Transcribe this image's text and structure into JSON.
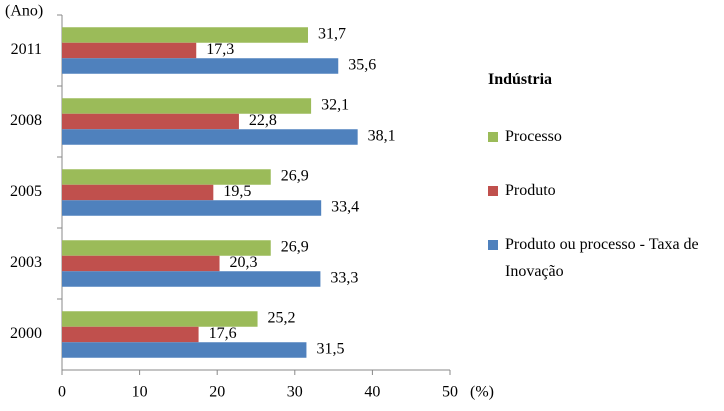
{
  "chart_data": {
    "type": "bar",
    "orientation": "horizontal",
    "x_label": "(%)",
    "y_label": "(Ano)",
    "legend_title": "Indústria",
    "categories": [
      "2011",
      "2008",
      "2005",
      "2003",
      "2000"
    ],
    "series": [
      {
        "name": "Processo",
        "color": "#9bbb59",
        "values": [
          31.7,
          32.1,
          26.9,
          26.9,
          25.2
        ],
        "value_labels": [
          "31,7",
          "32,1",
          "26,9",
          "26,9",
          "25,2"
        ]
      },
      {
        "name": "Produto",
        "color": "#c0504d",
        "values": [
          17.3,
          22.8,
          19.5,
          20.3,
          17.6
        ],
        "value_labels": [
          "17,3",
          "22,8",
          "19,5",
          "20,3",
          "17,6"
        ]
      },
      {
        "name": "Produto ou processo - Taxa de Inovação",
        "color": "#4f81bd",
        "values": [
          35.6,
          38.1,
          33.4,
          33.3,
          31.5
        ],
        "value_labels": [
          "35,6",
          "38,1",
          "33,4",
          "33,3",
          "31,5"
        ]
      }
    ],
    "xlim": [
      0,
      50
    ],
    "xticks": [
      0,
      10,
      20,
      30,
      40,
      50
    ],
    "grid": false,
    "legend_position": "right"
  }
}
